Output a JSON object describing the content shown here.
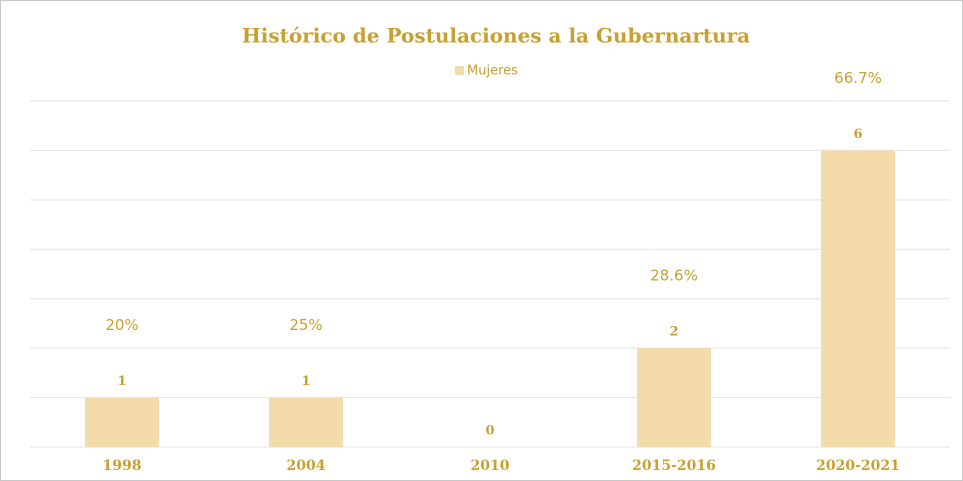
{
  "chart_data": {
    "type": "bar",
    "title": "Histórico de Postulaciones a la Gubernartura",
    "categories": [
      "1998",
      "2004",
      "2010",
      "2015-2016",
      "2020-2021"
    ],
    "series": [
      {
        "name": "Mujeres",
        "color": "#f3dcaa",
        "values": [
          1,
          1,
          0,
          2,
          6
        ]
      }
    ],
    "annotations": [
      "20%",
      "25%",
      null,
      "28.6%",
      "66.7%"
    ],
    "ylim": [
      0,
      7
    ],
    "yticks": [
      0,
      1,
      2,
      3,
      4,
      5,
      6,
      7
    ],
    "grid": true,
    "legend": "top"
  }
}
